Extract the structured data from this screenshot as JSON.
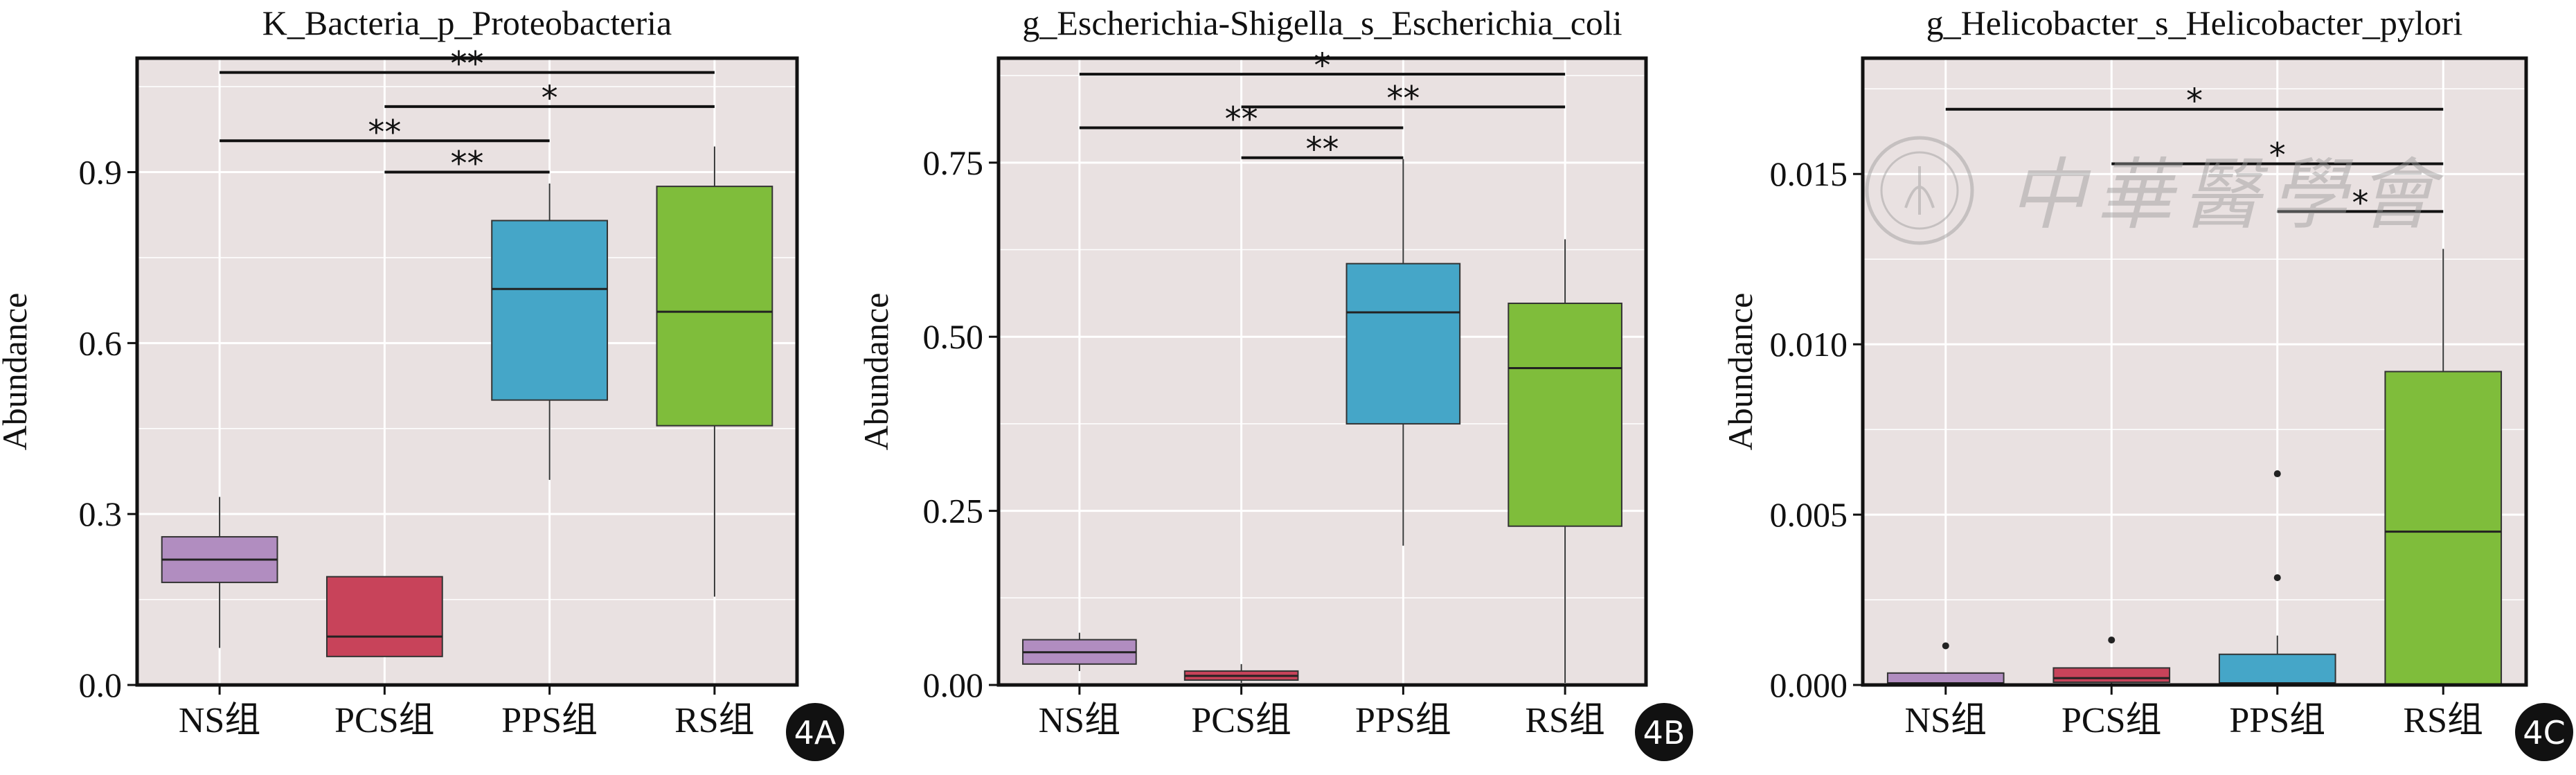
{
  "figure": {
    "watermark_text": "中華醫學會",
    "panel_background": "#e9e1e1",
    "grid_color": "#ffffff"
  },
  "chart_data": [
    {
      "type": "box",
      "title": "K_Bacteria_p_Proteobacteria",
      "xlabel": "",
      "ylabel": "Abundance",
      "ylim": [
        0,
        1.1
      ],
      "yticks": [
        "0.0",
        "0.3",
        "0.6",
        "0.9"
      ],
      "ytick_values": [
        0,
        0.3,
        0.6,
        0.9
      ],
      "categories": [
        "NS组",
        "PCS组",
        "PPS组",
        "RS组"
      ],
      "colors": [
        "#b18dc0",
        "#c8435a",
        "#45a6c8",
        "#7fbd3b"
      ],
      "boxes": [
        {
          "low": 0.065,
          "q1": 0.18,
          "median": 0.22,
          "q3": 0.26,
          "high": 0.33,
          "outliers": []
        },
        {
          "low": 0.05,
          "q1": 0.05,
          "median": 0.085,
          "q3": 0.19,
          "high": 0.19,
          "outliers": []
        },
        {
          "low": 0.36,
          "q1": 0.5,
          "median": 0.695,
          "q3": 0.815,
          "high": 0.88,
          "outliers": []
        },
        {
          "low": 0.155,
          "q1": 0.455,
          "median": 0.655,
          "q3": 0.875,
          "high": 0.945,
          "outliers": []
        }
      ],
      "significance": [
        {
          "from": 0,
          "to": 3,
          "y": 1.075,
          "label": "**"
        },
        {
          "from": 1,
          "to": 3,
          "y": 1.015,
          "label": "*"
        },
        {
          "from": 0,
          "to": 2,
          "y": 0.955,
          "label": "**"
        },
        {
          "from": 1,
          "to": 2,
          "y": 0.9,
          "label": "**"
        }
      ],
      "badge": "4A"
    },
    {
      "type": "box",
      "title": "g_Escherichia-Shigella_s_Escherichia_coli",
      "xlabel": "",
      "ylabel": "Abundance",
      "ylim": [
        0,
        0.9
      ],
      "yticks": [
        "0.00",
        "0.25",
        "0.50",
        "0.75"
      ],
      "ytick_values": [
        0,
        0.25,
        0.5,
        0.75
      ],
      "categories": [
        "NS组",
        "PCS组",
        "PPS组",
        "RS组"
      ],
      "colors": [
        "#b18dc0",
        "#c8435a",
        "#45a6c8",
        "#7fbd3b"
      ],
      "boxes": [
        {
          "low": 0.02,
          "q1": 0.03,
          "median": 0.047,
          "q3": 0.065,
          "high": 0.075,
          "outliers": []
        },
        {
          "low": 0.003,
          "q1": 0.007,
          "median": 0.013,
          "q3": 0.02,
          "high": 0.03,
          "outliers": []
        },
        {
          "low": 0.2,
          "q1": 0.375,
          "median": 0.535,
          "q3": 0.605,
          "high": 0.755,
          "outliers": []
        },
        {
          "low": 0.003,
          "q1": 0.228,
          "median": 0.455,
          "q3": 0.548,
          "high": 0.64,
          "outliers": []
        }
      ],
      "significance": [
        {
          "from": 0,
          "to": 3,
          "y": 0.877,
          "label": "*"
        },
        {
          "from": 1,
          "to": 3,
          "y": 0.83,
          "label": "**"
        },
        {
          "from": 0,
          "to": 2,
          "y": 0.8,
          "label": "**"
        },
        {
          "from": 1,
          "to": 2,
          "y": 0.757,
          "label": "**"
        }
      ],
      "badge": "4B"
    },
    {
      "type": "box",
      "title": "g_Helicobacter_s_Helicobacter_pylori",
      "xlabel": "",
      "ylabel": "Abundance",
      "ylim": [
        0,
        0.0184
      ],
      "yticks": [
        "0.000",
        "0.005",
        "0.010",
        "0.015"
      ],
      "ytick_values": [
        0,
        0.005,
        0.01,
        0.015
      ],
      "categories": [
        "NS组",
        "PCS组",
        "PPS组",
        "RS组"
      ],
      "colors": [
        "#b18dc0",
        "#c8435a",
        "#45a6c8",
        "#7fbd3b"
      ],
      "boxes": [
        {
          "low": 0,
          "q1": 0,
          "median": 5e-05,
          "q3": 0.00035,
          "high": 0.00035,
          "outliers": [
            0.00115
          ]
        },
        {
          "low": 0,
          "q1": 8e-05,
          "median": 0.0002,
          "q3": 0.0005,
          "high": 0.0005,
          "outliers": [
            0.00132
          ]
        },
        {
          "low": 0,
          "q1": 0,
          "median": 5e-05,
          "q3": 0.0009,
          "high": 0.00145,
          "outliers": [
            0.00315,
            0.0062
          ]
        },
        {
          "low": 0,
          "q1": 0,
          "median": 0.0045,
          "q3": 0.0092,
          "high": 0.0128,
          "outliers": []
        }
      ],
      "significance": [
        {
          "from": 0,
          "to": 3,
          "y": 0.0169,
          "label": "*"
        },
        {
          "from": 1,
          "to": 3,
          "y": 0.0153,
          "label": "*"
        },
        {
          "from": 2,
          "to": 3,
          "y": 0.0139,
          "label": "*"
        }
      ],
      "badge": "4C"
    }
  ]
}
